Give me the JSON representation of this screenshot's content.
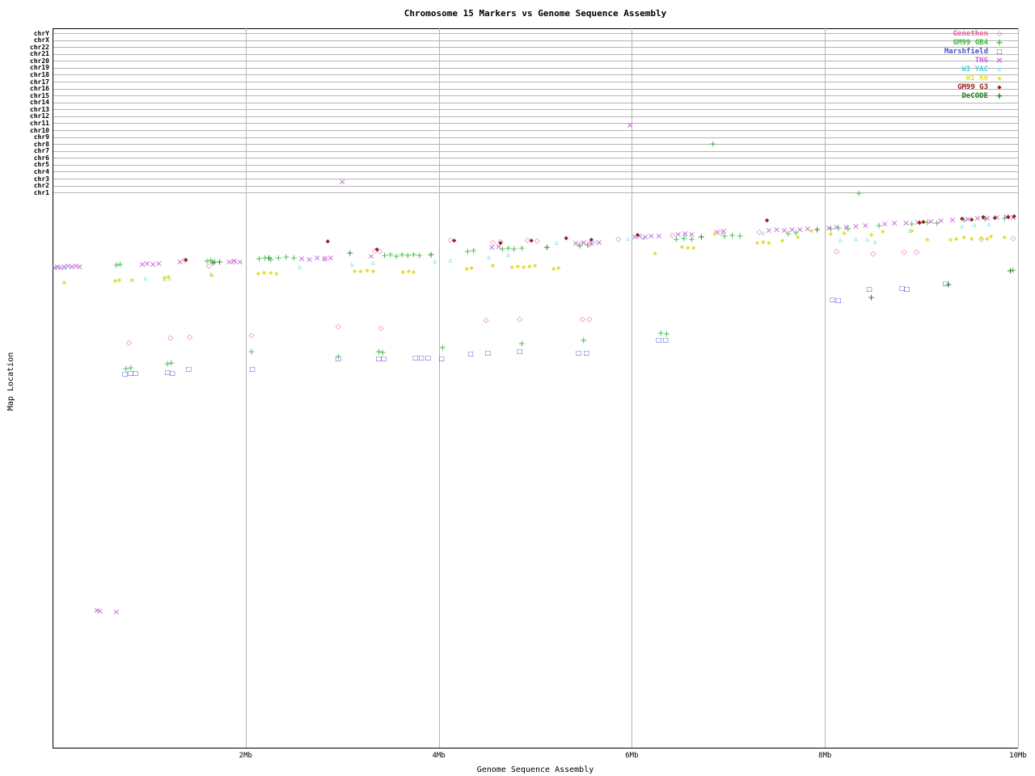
{
  "chart_data": {
    "type": "scatter",
    "title": "Chromosome 15 Markers vs Genome Sequence Assembly",
    "xlabel": "Genome Sequence Assembly",
    "ylabel": "Map Location",
    "x_range_mb": [
      0,
      10
    ],
    "x_ticks": [
      {
        "mb": 2,
        "label": "2Mb"
      },
      {
        "mb": 4,
        "label": "4Mb"
      },
      {
        "mb": 6,
        "label": "6Mb"
      },
      {
        "mb": 8,
        "label": "8Mb"
      },
      {
        "mb": 10,
        "label": "10Mb"
      }
    ],
    "grid": "vertical gray gridlines at each x tick; horizontal gray rows for chromosomes at top; legend top-right",
    "note": "y axis has no numeric scale; point y values are pixel rows in the 960px-tall source image (smaller = higher map location band)",
    "chromosome_rows": [
      "chrY",
      "chrX",
      "chr22",
      "chr21",
      "chr20",
      "chr19",
      "chr18",
      "chr17",
      "chr16",
      "chr15",
      "chr14",
      "chr13",
      "chr12",
      "chr11",
      "chr10",
      "chr9",
      "chr8",
      "chr7",
      "chr6",
      "chr5",
      "chr4",
      "chr3",
      "chr2",
      "chr1"
    ],
    "series": [
      {
        "name": "Genethon",
        "color": "#e0609c",
        "marker": "diamond-open",
        "points": [
          [
            1.37,
            323
          ],
          [
            1.62,
            330
          ],
          [
            1.88,
            325
          ],
          [
            2.82,
            321
          ],
          [
            3.34,
            311
          ],
          [
            3.39,
            312
          ],
          [
            4.12,
            298
          ],
          [
            4.56,
            301
          ],
          [
            4.64,
            300
          ],
          [
            4.92,
            298
          ],
          [
            5.02,
            299
          ],
          [
            5.47,
            303
          ],
          [
            5.56,
            304
          ],
          [
            5.86,
            297
          ],
          [
            6.42,
            292
          ],
          [
            6.92,
            289
          ],
          [
            7.32,
            288
          ],
          [
            8.12,
            312
          ],
          [
            8.5,
            315
          ],
          [
            8.82,
            313
          ],
          [
            8.95,
            313
          ],
          [
            9.62,
            297
          ],
          [
            9.95,
            296
          ],
          [
            0.79,
            425
          ],
          [
            1.22,
            419
          ],
          [
            1.42,
            418
          ],
          [
            2.06,
            416
          ],
          [
            2.96,
            405
          ],
          [
            3.4,
            407
          ],
          [
            4.49,
            397
          ],
          [
            4.84,
            396
          ],
          [
            5.49,
            396
          ],
          [
            5.56,
            396
          ]
        ]
      },
      {
        "name": "GM99 GB4",
        "color": "#3cb83c",
        "marker": "plus",
        "points": [
          [
            0.66,
            328
          ],
          [
            0.7,
            327
          ],
          [
            1.6,
            323
          ],
          [
            1.64,
            322
          ],
          [
            1.68,
            324
          ],
          [
            2.14,
            320
          ],
          [
            2.2,
            319
          ],
          [
            2.26,
            321
          ],
          [
            2.34,
            319
          ],
          [
            2.42,
            318
          ],
          [
            2.5,
            319
          ],
          [
            3.44,
            316
          ],
          [
            3.5,
            315
          ],
          [
            3.56,
            317
          ],
          [
            3.62,
            315
          ],
          [
            3.68,
            316
          ],
          [
            3.74,
            315
          ],
          [
            3.8,
            316
          ],
          [
            4.3,
            311
          ],
          [
            4.36,
            310
          ],
          [
            4.66,
            308
          ],
          [
            4.72,
            307
          ],
          [
            4.78,
            308
          ],
          [
            4.86,
            307
          ],
          [
            5.46,
            304
          ],
          [
            5.54,
            303
          ],
          [
            6.46,
            296
          ],
          [
            6.54,
            295
          ],
          [
            6.62,
            296
          ],
          [
            6.96,
            292
          ],
          [
            7.04,
            291
          ],
          [
            7.12,
            292
          ],
          [
            7.62,
            289
          ],
          [
            7.7,
            288
          ],
          [
            8.06,
            283
          ],
          [
            8.14,
            282
          ],
          [
            8.24,
            283
          ],
          [
            8.56,
            279
          ],
          [
            8.9,
            277
          ],
          [
            9.06,
            275
          ],
          [
            9.16,
            276
          ],
          [
            9.44,
            272
          ],
          [
            9.66,
            271
          ],
          [
            9.86,
            270
          ],
          [
            0.76,
            456
          ],
          [
            0.81,
            455
          ],
          [
            1.19,
            450
          ],
          [
            1.23,
            449
          ],
          [
            2.06,
            435
          ],
          [
            2.96,
            441
          ],
          [
            3.38,
            435
          ],
          [
            3.42,
            436
          ],
          [
            4.04,
            430
          ],
          [
            4.86,
            425
          ],
          [
            5.5,
            421
          ],
          [
            6.3,
            412
          ],
          [
            6.36,
            413
          ],
          [
            6.84,
            178
          ],
          [
            8.35,
            239
          ],
          [
            9.95,
            334
          ]
        ]
      },
      {
        "name": "Marshfield",
        "color": "#4852c8",
        "marker": "square-open",
        "points": [
          [
            0.75,
            463
          ],
          [
            0.81,
            462
          ],
          [
            0.86,
            462
          ],
          [
            1.19,
            461
          ],
          [
            1.24,
            462
          ],
          [
            1.41,
            457
          ],
          [
            2.07,
            457
          ],
          [
            2.96,
            444
          ],
          [
            3.38,
            444
          ],
          [
            3.43,
            444
          ],
          [
            3.76,
            443
          ],
          [
            3.82,
            443
          ],
          [
            3.89,
            443
          ],
          [
            4.03,
            444
          ],
          [
            4.33,
            438
          ],
          [
            4.51,
            437
          ],
          [
            4.84,
            435
          ],
          [
            5.45,
            437
          ],
          [
            5.53,
            437
          ],
          [
            6.28,
            421
          ],
          [
            6.35,
            421
          ],
          [
            8.08,
            371
          ],
          [
            8.14,
            372
          ],
          [
            8.46,
            358
          ],
          [
            8.8,
            357
          ],
          [
            8.85,
            358
          ],
          [
            9.25,
            351
          ]
        ]
      },
      {
        "name": "TNG",
        "color": "#c864dc",
        "marker": "x",
        "points": [
          [
            0.02,
            331
          ],
          [
            0.05,
            330
          ],
          [
            0.08,
            331
          ],
          [
            0.12,
            330
          ],
          [
            0.16,
            329
          ],
          [
            0.2,
            330
          ],
          [
            0.24,
            329
          ],
          [
            0.28,
            330
          ],
          [
            0.93,
            327
          ],
          [
            0.98,
            326
          ],
          [
            1.04,
            327
          ],
          [
            1.1,
            326
          ],
          [
            1.32,
            324
          ],
          [
            1.83,
            324
          ],
          [
            1.88,
            323
          ],
          [
            1.94,
            324
          ],
          [
            2.58,
            320
          ],
          [
            2.66,
            321
          ],
          [
            2.74,
            319
          ],
          [
            2.82,
            320
          ],
          [
            2.88,
            319
          ],
          [
            3.3,
            317
          ],
          [
            4.55,
            306
          ],
          [
            4.62,
            305
          ],
          [
            5.42,
            301
          ],
          [
            5.5,
            300
          ],
          [
            5.58,
            301
          ],
          [
            5.66,
            300
          ],
          [
            6.03,
            293
          ],
          [
            6.08,
            292
          ],
          [
            6.14,
            293
          ],
          [
            6.2,
            292
          ],
          [
            6.28,
            292
          ],
          [
            6.48,
            290
          ],
          [
            6.55,
            289
          ],
          [
            6.62,
            290
          ],
          [
            6.88,
            287
          ],
          [
            6.95,
            286
          ],
          [
            7.42,
            285
          ],
          [
            7.5,
            284
          ],
          [
            7.58,
            285
          ],
          [
            7.66,
            284
          ],
          [
            7.74,
            284
          ],
          [
            7.82,
            283
          ],
          [
            8.04,
            282
          ],
          [
            8.12,
            281
          ],
          [
            8.22,
            281
          ],
          [
            8.32,
            280
          ],
          [
            8.42,
            279
          ],
          [
            8.62,
            277
          ],
          [
            8.72,
            276
          ],
          [
            8.84,
            276
          ],
          [
            8.96,
            275
          ],
          [
            9.1,
            274
          ],
          [
            9.2,
            273
          ],
          [
            9.32,
            272
          ],
          [
            9.48,
            271
          ],
          [
            9.58,
            270
          ],
          [
            9.68,
            270
          ],
          [
            9.78,
            269
          ],
          [
            9.88,
            268
          ],
          [
            9.95,
            269
          ],
          [
            5.98,
            155
          ],
          [
            3.0,
            225
          ],
          [
            0.46,
            755
          ],
          [
            0.49,
            756
          ],
          [
            0.66,
            757
          ]
        ]
      },
      {
        "name": "WI YAC",
        "color": "#40d8d8",
        "marker": "triangle",
        "points": [
          [
            0.03,
            332
          ],
          [
            0.13,
            332
          ],
          [
            0.96,
            345
          ],
          [
            1.16,
            346
          ],
          [
            1.21,
            345
          ],
          [
            1.64,
            339
          ],
          [
            2.56,
            331
          ],
          [
            3.1,
            328
          ],
          [
            3.32,
            326
          ],
          [
            3.96,
            324
          ],
          [
            4.12,
            323
          ],
          [
            4.52,
            319
          ],
          [
            4.72,
            316
          ],
          [
            5.22,
            301
          ],
          [
            5.62,
            300
          ],
          [
            5.96,
            296
          ],
          [
            6.12,
            295
          ],
          [
            6.56,
            291
          ],
          [
            7.36,
            289
          ],
          [
            8.16,
            298
          ],
          [
            8.32,
            296
          ],
          [
            8.44,
            297
          ],
          [
            8.52,
            300
          ],
          [
            8.88,
            286
          ],
          [
            9.42,
            281
          ],
          [
            9.55,
            279
          ],
          [
            9.7,
            278
          ]
        ]
      },
      {
        "name": "WI RH",
        "color": "#e2e040",
        "marker": "diamond",
        "points": [
          [
            0.12,
            350
          ],
          [
            0.65,
            348
          ],
          [
            0.69,
            347
          ],
          [
            0.82,
            347
          ],
          [
            1.16,
            344
          ],
          [
            1.2,
            343
          ],
          [
            1.65,
            341
          ],
          [
            2.13,
            339
          ],
          [
            2.19,
            338
          ],
          [
            2.26,
            338
          ],
          [
            2.32,
            339
          ],
          [
            3.13,
            336
          ],
          [
            3.19,
            336
          ],
          [
            3.26,
            335
          ],
          [
            3.32,
            336
          ],
          [
            3.63,
            337
          ],
          [
            3.69,
            336
          ],
          [
            3.74,
            337
          ],
          [
            4.29,
            333
          ],
          [
            4.34,
            332
          ],
          [
            4.56,
            329
          ],
          [
            4.76,
            331
          ],
          [
            4.82,
            330
          ],
          [
            4.88,
            331
          ],
          [
            4.94,
            330
          ],
          [
            5.0,
            329
          ],
          [
            5.19,
            333
          ],
          [
            5.24,
            332
          ],
          [
            6.24,
            314
          ],
          [
            6.52,
            306
          ],
          [
            6.58,
            307
          ],
          [
            6.64,
            307
          ],
          [
            6.86,
            290
          ],
          [
            7.3,
            301
          ],
          [
            7.36,
            300
          ],
          [
            7.42,
            301
          ],
          [
            7.56,
            298
          ],
          [
            7.72,
            294
          ],
          [
            7.86,
            286
          ],
          [
            8.06,
            290
          ],
          [
            8.2,
            289
          ],
          [
            8.48,
            291
          ],
          [
            8.6,
            287
          ],
          [
            8.9,
            286
          ],
          [
            9.06,
            297
          ],
          [
            9.3,
            297
          ],
          [
            9.36,
            296
          ],
          [
            9.44,
            294
          ],
          [
            9.52,
            296
          ],
          [
            9.62,
            295
          ],
          [
            9.68,
            296
          ],
          [
            9.72,
            293
          ],
          [
            9.86,
            294
          ]
        ]
      },
      {
        "name": "GM99 G3",
        "color": "#942222",
        "marker": "diamond",
        "points": [
          [
            1.38,
            322
          ],
          [
            2.85,
            299
          ],
          [
            3.36,
            309
          ],
          [
            4.16,
            298
          ],
          [
            4.64,
            301
          ],
          [
            4.96,
            298
          ],
          [
            5.32,
            295
          ],
          [
            5.58,
            297
          ],
          [
            6.06,
            291
          ],
          [
            7.4,
            273
          ],
          [
            8.98,
            276
          ],
          [
            9.02,
            275
          ],
          [
            9.42,
            271
          ],
          [
            9.52,
            272
          ],
          [
            9.64,
            269
          ],
          [
            9.76,
            270
          ],
          [
            9.9,
            269
          ],
          [
            9.96,
            268
          ]
        ]
      },
      {
        "name": "DeCODE",
        "color": "#157815",
        "marker": "plus",
        "points": [
          [
            1.66,
            325
          ],
          [
            1.73,
            324
          ],
          [
            2.24,
            319
          ],
          [
            3.08,
            313
          ],
          [
            3.92,
            315
          ],
          [
            5.12,
            306
          ],
          [
            6.72,
            293
          ],
          [
            7.92,
            284
          ],
          [
            8.48,
            368
          ],
          [
            9.28,
            352
          ],
          [
            9.92,
            335
          ]
        ]
      }
    ]
  }
}
